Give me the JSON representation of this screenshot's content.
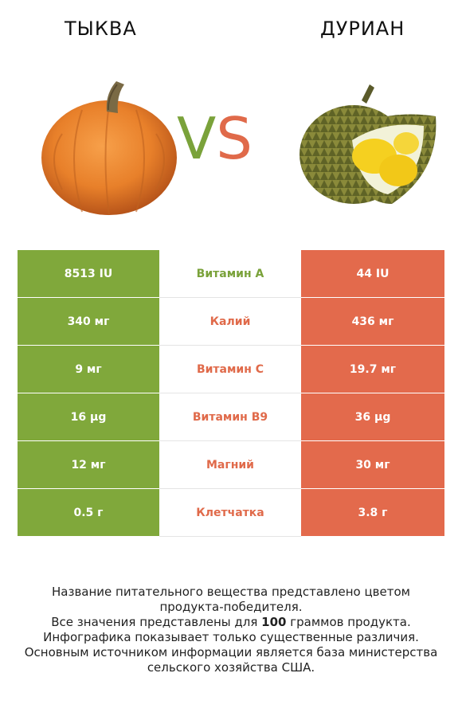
{
  "header": {
    "left_title": "ТЫКВА",
    "right_title": "ДУРИАН",
    "vs_v": "V",
    "vs_s": "S"
  },
  "colors": {
    "left_accent": "#80a83b",
    "right_accent": "#e36a4c"
  },
  "rows": [
    {
      "left": "8513 IU",
      "nutrient": "Витамин A",
      "right": "44 IU",
      "winner": "left"
    },
    {
      "left": "340 мг",
      "nutrient": "Калий",
      "right": "436 мг",
      "winner": "right"
    },
    {
      "left": "9 мг",
      "nutrient": "Витамин C",
      "right": "19.7 мг",
      "winner": "right"
    },
    {
      "left": "16 µg",
      "nutrient": "Витамин B9",
      "right": "36 µg",
      "winner": "right"
    },
    {
      "left": "12 мг",
      "nutrient": "Магний",
      "right": "30 мг",
      "winner": "right"
    },
    {
      "left": "0.5 г",
      "nutrient": "Клетчатка",
      "right": "3.8 г",
      "winner": "right"
    }
  ],
  "footer": {
    "line1": "Название питательного вещества представлено цветом",
    "line2": "продукта-победителя.",
    "line3_pre": "Все значения представлены для ",
    "line3_bold": "100",
    "line3_post": " граммов продукта.",
    "line4": "Инфографика показывает только существенные различия.",
    "line5": "Основным источником информации является база министерства",
    "line6": "сельского хозяйства США."
  }
}
